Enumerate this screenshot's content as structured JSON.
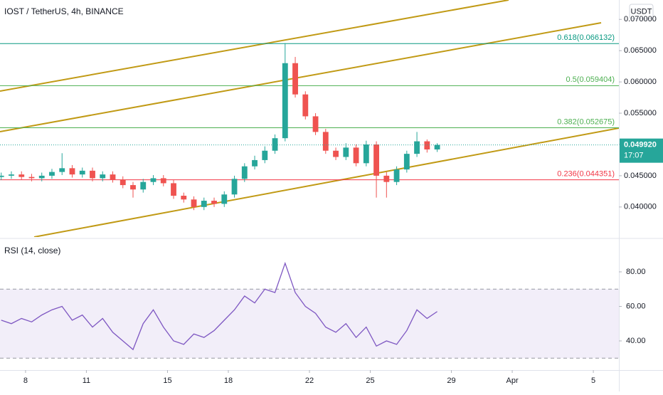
{
  "chart_data": [
    {
      "type": "candlestick",
      "title": "IOST / TetherUS, 4h, BINANCE",
      "currency": "USDT",
      "x": [
        6.8,
        7.3,
        7.8,
        8.3,
        8.8,
        9.3,
        9.8,
        10.3,
        10.8,
        11.3,
        11.8,
        12.3,
        12.8,
        13.3,
        13.8,
        14.3,
        14.8,
        15.3,
        15.8,
        16.3,
        16.8,
        17.3,
        17.8,
        18.3,
        18.8,
        19.3,
        19.8,
        20.3,
        20.8,
        21.3,
        21.8,
        22.3,
        22.8,
        23.3,
        23.8,
        24.3,
        24.8,
        25.3,
        25.8,
        26.3,
        26.8,
        27.3,
        27.8,
        28.3
      ],
      "open": [
        0.0448,
        0.045,
        0.0452,
        0.0448,
        0.0446,
        0.045,
        0.0456,
        0.0462,
        0.0452,
        0.0458,
        0.0446,
        0.0452,
        0.0444,
        0.0435,
        0.0428,
        0.044,
        0.0446,
        0.0438,
        0.0418,
        0.0412,
        0.04,
        0.041,
        0.0405,
        0.042,
        0.0445,
        0.0465,
        0.0475,
        0.049,
        0.051,
        0.063,
        0.058,
        0.0545,
        0.052,
        0.049,
        0.048,
        0.0495,
        0.047,
        0.05,
        0.045,
        0.044,
        0.046,
        0.0485,
        0.0505,
        0.0492
      ],
      "high": [
        0.0455,
        0.0457,
        0.0457,
        0.0453,
        0.0455,
        0.0461,
        0.0486,
        0.0467,
        0.0463,
        0.0463,
        0.0457,
        0.0457,
        0.0449,
        0.044,
        0.0445,
        0.0451,
        0.0451,
        0.0443,
        0.0423,
        0.0417,
        0.0415,
        0.0415,
        0.0425,
        0.045,
        0.047,
        0.0482,
        0.0497,
        0.0516,
        0.0662,
        0.064,
        0.0585,
        0.055,
        0.0525,
        0.0495,
        0.0502,
        0.05,
        0.0506,
        0.0505,
        0.0456,
        0.0465,
        0.049,
        0.052,
        0.0508,
        0.0502
      ],
      "low": [
        0.0443,
        0.0445,
        0.0443,
        0.0441,
        0.0441,
        0.0445,
        0.0451,
        0.0447,
        0.0447,
        0.0441,
        0.0441,
        0.0439,
        0.043,
        0.0415,
        0.0423,
        0.0435,
        0.0433,
        0.0413,
        0.0407,
        0.0395,
        0.0395,
        0.04,
        0.04,
        0.0415,
        0.044,
        0.046,
        0.047,
        0.0485,
        0.0505,
        0.0575,
        0.054,
        0.0515,
        0.0485,
        0.0475,
        0.0475,
        0.0465,
        0.0465,
        0.0415,
        0.0415,
        0.0435,
        0.0455,
        0.048,
        0.0487,
        0.0488
      ],
      "close": [
        0.045,
        0.0452,
        0.0448,
        0.0446,
        0.045,
        0.0456,
        0.0462,
        0.0452,
        0.0458,
        0.0446,
        0.0452,
        0.0444,
        0.0435,
        0.0428,
        0.044,
        0.0446,
        0.0438,
        0.0418,
        0.0412,
        0.04,
        0.041,
        0.0405,
        0.042,
        0.0445,
        0.0465,
        0.0475,
        0.049,
        0.051,
        0.063,
        0.058,
        0.0545,
        0.052,
        0.049,
        0.048,
        0.0495,
        0.047,
        0.05,
        0.045,
        0.044,
        0.046,
        0.0485,
        0.0505,
        0.0492,
        0.04992
      ],
      "up_color": "#26a69a",
      "down_color": "#ef5350",
      "xlim": [
        6.74,
        37.26
      ],
      "xticks": [
        8,
        11,
        15,
        18,
        22,
        25,
        29,
        {
          "value": 32,
          "label": "Apr"
        },
        {
          "value": 36,
          "label": "5"
        }
      ],
      "ylim": [
        0.0352,
        0.0731
      ],
      "yticks": [
        {
          "value": 0.04,
          "label": "0.040000"
        },
        {
          "value": 0.045,
          "label": "0.045000"
        },
        {
          "value": 0.05,
          "label": "0.050000"
        },
        {
          "value": 0.055,
          "label": "0.055000"
        },
        {
          "value": 0.06,
          "label": "0.060000"
        },
        {
          "value": 0.065,
          "label": "0.065000"
        },
        {
          "value": 0.07,
          "label": "0.070000"
        }
      ],
      "fib_levels": [
        {
          "value": 0.066132,
          "label": "0.618(0.066132)",
          "color": "#089981"
        },
        {
          "value": 0.059404,
          "label": "0.5(0.059404)",
          "color": "#4caf50"
        },
        {
          "value": 0.052675,
          "label": "0.382(0.052675)",
          "color": "#4caf50"
        },
        {
          "value": 0.044351,
          "label": "0.236(0.044351)",
          "color": "#f23645"
        }
      ],
      "last_price": {
        "value": 0.04992,
        "label": "0.049920"
      },
      "countdown": "17:07"
    },
    {
      "type": "line",
      "title": "RSI (14, close)",
      "color": "#7e57c2",
      "values": [
        52,
        50,
        53,
        51,
        55,
        58,
        60,
        52,
        55,
        48,
        53,
        45,
        40,
        35,
        50,
        58,
        48,
        40,
        38,
        44,
        42,
        46,
        52,
        58,
        66,
        62,
        70,
        68,
        85,
        68,
        60,
        56,
        48,
        45,
        50,
        42,
        48,
        37,
        40,
        38,
        46,
        58,
        53,
        57
      ],
      "ylim": [
        23.1,
        97.3
      ],
      "yticks": [
        {
          "value": 40,
          "label": "40.00"
        },
        {
          "value": 60,
          "label": "60.00"
        },
        {
          "value": 80,
          "label": "80.00"
        }
      ],
      "band_lines": [
        30,
        70
      ],
      "band_color": "#7e57c2"
    }
  ]
}
